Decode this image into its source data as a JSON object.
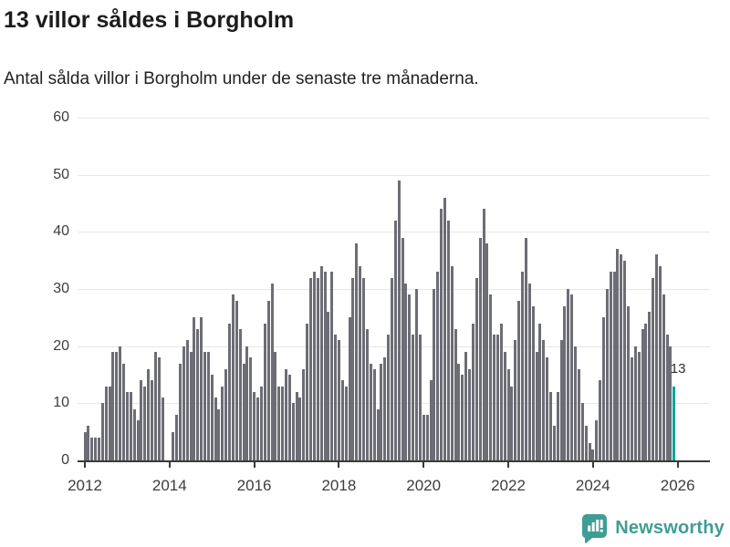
{
  "header": {
    "title": "13 villor såldes i Borgholm",
    "subtitle": "Antal sålda villor i Borgholm under de senaste tre månaderna."
  },
  "chart_data": {
    "type": "bar",
    "title": "13 villor såldes i Borgholm",
    "subtitle": "Antal sålda villor i Borgholm under de senaste tre månaderna.",
    "x_monthly_start": "2012-01",
    "x_monthly_end": "2025-12",
    "x_tick_labels": [
      "2012",
      "2014",
      "2016",
      "2018",
      "2020",
      "2022",
      "2024",
      "2026"
    ],
    "y_ticks": [
      0,
      10,
      20,
      30,
      40,
      50,
      60
    ],
    "ylim": [
      0,
      60
    ],
    "grid": true,
    "bar_color": "#6d6d76",
    "highlight_color": "#0aa39b",
    "highlight_index": 167,
    "highlight_label": "13",
    "series": [
      {
        "name": "Antal sålda villor, rullande tre månader",
        "values": [
          5,
          6,
          4,
          4,
          4,
          10,
          13,
          13,
          19,
          19,
          20,
          17,
          12,
          12,
          9,
          7,
          14,
          13,
          16,
          14,
          19,
          18,
          11,
          0,
          0,
          5,
          8,
          17,
          20,
          21,
          19,
          25,
          23,
          25,
          19,
          19,
          15,
          11,
          9,
          13,
          16,
          24,
          29,
          28,
          23,
          17,
          20,
          18,
          12,
          11,
          13,
          24,
          28,
          31,
          19,
          13,
          13,
          16,
          15,
          10,
          12,
          11,
          16,
          24,
          32,
          33,
          32,
          34,
          33,
          26,
          33,
          22,
          21,
          14,
          13,
          25,
          32,
          38,
          34,
          32,
          23,
          17,
          16,
          9,
          17,
          18,
          22,
          32,
          42,
          49,
          39,
          31,
          29,
          22,
          30,
          22,
          8,
          8,
          14,
          30,
          33,
          44,
          46,
          42,
          34,
          23,
          17,
          15,
          19,
          16,
          24,
          32,
          39,
          44,
          38,
          29,
          22,
          22,
          24,
          19,
          16,
          13,
          21,
          28,
          33,
          39,
          31,
          27,
          19,
          24,
          21,
          18,
          12,
          6,
          12,
          21,
          27,
          30,
          29,
          20,
          16,
          10,
          6,
          3,
          2,
          7,
          14,
          25,
          30,
          33,
          33,
          37,
          36,
          35,
          27,
          18,
          20,
          19,
          23,
          24,
          26,
          32,
          36,
          34,
          29,
          22,
          20,
          13
        ]
      }
    ]
  },
  "annotation": {
    "last_value_label": "13"
  },
  "footer": {
    "brand": "Newsworthy",
    "logo_icon": "bar-chart-speech-bubble-icon"
  },
  "colors": {
    "bar": "#6d6d76",
    "highlight": "#0aa39b",
    "logo_teal": "#3f9d95",
    "gridline": "#e7e7e7",
    "axis": "#3a3a3a",
    "text": "#1c1c1c"
  }
}
